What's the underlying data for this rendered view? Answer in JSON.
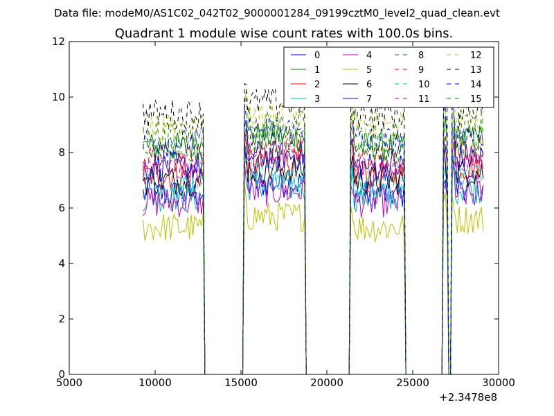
{
  "header": {
    "data_file": "Data file: modeM0/AS1C02_042T02_9000001284_09199cztM0_level2_quad_clean.evt"
  },
  "chart_data": {
    "type": "line",
    "title": "Quadrant 1 module wise count rates with 100.0s bins.",
    "xlabel": "",
    "ylabel": "",
    "x_offset_label": "+2.3478e8",
    "xlim": [
      5000,
      30000
    ],
    "ylim": [
      0,
      12
    ],
    "x_ticks": [
      5000,
      10000,
      15000,
      20000,
      25000,
      30000
    ],
    "y_ticks": [
      0,
      2,
      4,
      6,
      8,
      10,
      12
    ],
    "x_tick_labels": [
      "5000",
      "10000",
      "15000",
      "20000",
      "25000",
      "30000"
    ],
    "y_tick_labels": [
      "0",
      "2",
      "4",
      "6",
      "8",
      "10",
      "12"
    ],
    "grid": false,
    "legend_placement": "top-right",
    "bin_width": 100,
    "segments": [
      [
        9300,
        12800
      ],
      [
        15200,
        18700
      ],
      [
        21400,
        24500
      ],
      [
        26800,
        27000
      ],
      [
        27300,
        29100
      ]
    ],
    "gaps": [
      [
        12800,
        15200
      ],
      [
        18700,
        21400
      ],
      [
        24500,
        26800
      ],
      [
        27000,
        27300
      ]
    ],
    "series": [
      {
        "name": "0",
        "color": "#0000ff",
        "dash": "solid",
        "level": 6.5
      },
      {
        "name": "1",
        "color": "#008000",
        "dash": "solid",
        "level": 8.2
      },
      {
        "name": "2",
        "color": "#ff0000",
        "dash": "solid",
        "level": 7.2
      },
      {
        "name": "3",
        "color": "#00bfbf",
        "dash": "solid",
        "level": 6.4
      },
      {
        "name": "4",
        "color": "#bf00bf",
        "dash": "solid",
        "level": 6.2
      },
      {
        "name": "5",
        "color": "#bfbf00",
        "dash": "solid",
        "level": 5.3
      },
      {
        "name": "6",
        "color": "#000000",
        "dash": "solid",
        "level": 7.0
      },
      {
        "name": "7",
        "color": "#0000ff",
        "dash": "solid",
        "level": 7.5
      },
      {
        "name": "8",
        "color": "#008000",
        "dash": "dashed",
        "level": 8.6
      },
      {
        "name": "9",
        "color": "#ff0000",
        "dash": "dashed",
        "level": 7.8
      },
      {
        "name": "10",
        "color": "#00bfbf",
        "dash": "dashed",
        "level": 6.8
      },
      {
        "name": "11",
        "color": "#bf00bf",
        "dash": "dashed",
        "level": 7.4
      },
      {
        "name": "12",
        "color": "#bfbf00",
        "dash": "dashed",
        "level": 8.9
      },
      {
        "name": "13",
        "color": "#000000",
        "dash": "dashed",
        "level": 9.4
      },
      {
        "name": "14",
        "color": "#0000ff",
        "dash": "dashed",
        "level": 8.4
      },
      {
        "name": "15",
        "color": "#008000",
        "dash": "dashed",
        "level": 8.0
      }
    ]
  }
}
